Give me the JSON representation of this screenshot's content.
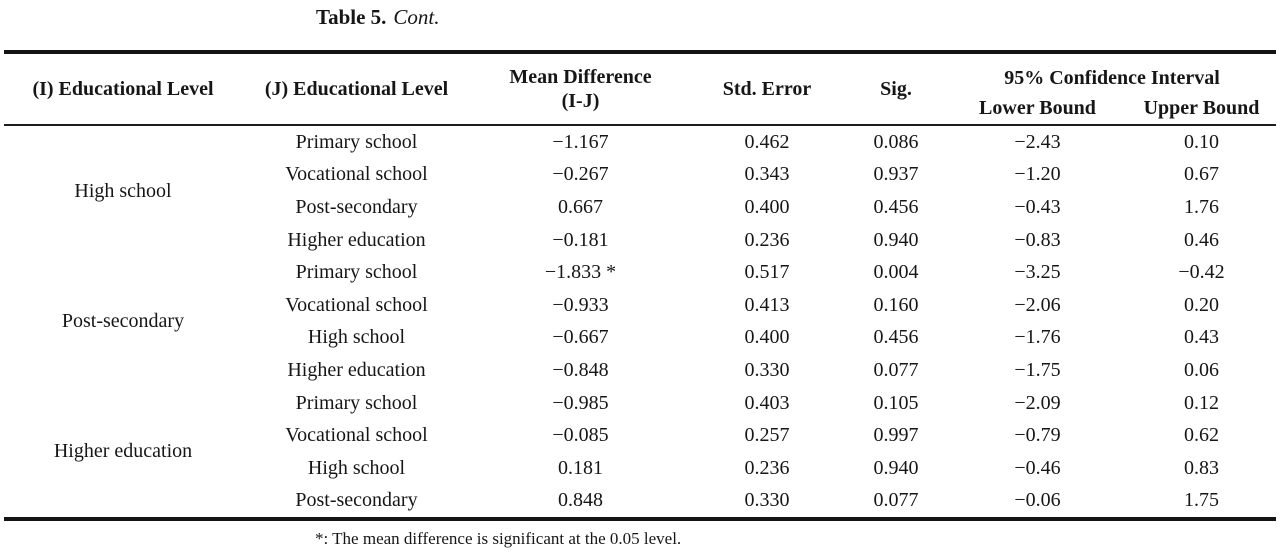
{
  "caption": {
    "label": "Table 5.",
    "cont": "Cont."
  },
  "table": {
    "col_headers": {
      "i_level": "(I) Educational Level",
      "j_level": "(J) Educational Level",
      "mean_diff_line1": "Mean Difference",
      "mean_diff_line2": "(I-J)",
      "std_error": "Std. Error",
      "sig": "Sig.",
      "ci": "95% Confidence Interval",
      "lower_bound": "Lower Bound",
      "upper_bound": "Upper Bound"
    },
    "groups": [
      {
        "i_label": "High school",
        "rows": [
          {
            "j": "Primary school",
            "mean_diff": "−1.167",
            "std_error": "0.462",
            "sig": "0.086",
            "lower": "−2.43",
            "upper": "0.10"
          },
          {
            "j": "Vocational school",
            "mean_diff": "−0.267",
            "std_error": "0.343",
            "sig": "0.937",
            "lower": "−1.20",
            "upper": "0.67"
          },
          {
            "j": "Post-secondary",
            "mean_diff": "0.667",
            "std_error": "0.400",
            "sig": "0.456",
            "lower": "−0.43",
            "upper": "1.76"
          },
          {
            "j": "Higher education",
            "mean_diff": "−0.181",
            "std_error": "0.236",
            "sig": "0.940",
            "lower": "−0.83",
            "upper": "0.46"
          }
        ]
      },
      {
        "i_label": "Post-secondary",
        "rows": [
          {
            "j": "Primary school",
            "mean_diff": "−1.833 *",
            "std_error": "0.517",
            "sig": "0.004",
            "lower": "−3.25",
            "upper": "−0.42"
          },
          {
            "j": "Vocational school",
            "mean_diff": "−0.933",
            "std_error": "0.413",
            "sig": "0.160",
            "lower": "−2.06",
            "upper": "0.20"
          },
          {
            "j": "High school",
            "mean_diff": "−0.667",
            "std_error": "0.400",
            "sig": "0.456",
            "lower": "−1.76",
            "upper": "0.43"
          },
          {
            "j": "Higher education",
            "mean_diff": "−0.848",
            "std_error": "0.330",
            "sig": "0.077",
            "lower": "−1.75",
            "upper": "0.06"
          }
        ]
      },
      {
        "i_label": "Higher education",
        "rows": [
          {
            "j": "Primary school",
            "mean_diff": "−0.985",
            "std_error": "0.403",
            "sig": "0.105",
            "lower": "−2.09",
            "upper": "0.12"
          },
          {
            "j": "Vocational school",
            "mean_diff": "−0.085",
            "std_error": "0.257",
            "sig": "0.997",
            "lower": "−0.79",
            "upper": "0.62"
          },
          {
            "j": "High school",
            "mean_diff": "0.181",
            "std_error": "0.236",
            "sig": "0.940",
            "lower": "−0.46",
            "upper": "0.83"
          },
          {
            "j": "Post-secondary",
            "mean_diff": "0.848",
            "std_error": "0.330",
            "sig": "0.077",
            "lower": "−0.06",
            "upper": "1.75"
          }
        ]
      }
    ],
    "footnote": "*: The mean difference is significant at the 0.05 level."
  }
}
